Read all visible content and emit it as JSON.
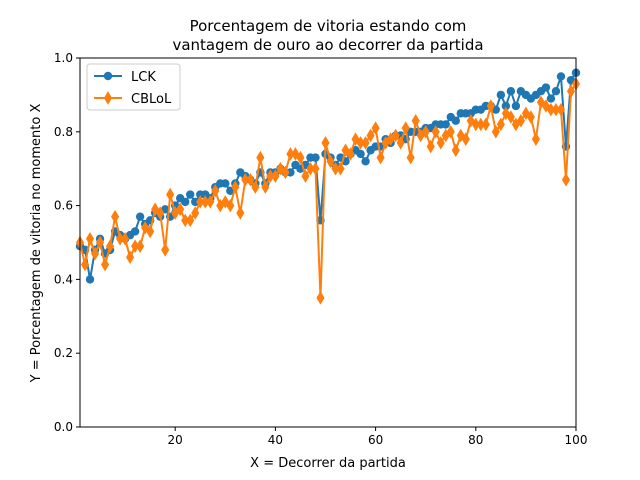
{
  "chart_data": {
    "type": "line",
    "title": "Porcentagem de vitoria estando com\nvantagem de ouro ao decorrer da partida",
    "xlabel": "X = Decorrer da partida",
    "ylabel": "Y = Porcentagem de vitoria no momento X",
    "xlim": [
      1,
      100
    ],
    "ylim": [
      0,
      1.0
    ],
    "xticks": [
      20,
      40,
      60,
      80,
      100
    ],
    "yticks": [
      0.0,
      0.2,
      0.4,
      0.6,
      0.8,
      1.0
    ],
    "ytick_labels": [
      "0.0",
      "0.2",
      "0.4",
      "0.6",
      "0.8",
      "1.0"
    ],
    "grid": false,
    "legend_position": "upper-left",
    "series": [
      {
        "name": "LCK",
        "color": "#1f77b4",
        "marker": "circle",
        "x": [
          1,
          2,
          3,
          4,
          5,
          6,
          7,
          8,
          9,
          10,
          11,
          12,
          13,
          14,
          15,
          16,
          17,
          18,
          19,
          20,
          21,
          22,
          23,
          24,
          25,
          26,
          27,
          28,
          29,
          30,
          31,
          32,
          33,
          34,
          35,
          36,
          37,
          38,
          39,
          40,
          41,
          42,
          43,
          44,
          45,
          46,
          47,
          48,
          49,
          50,
          51,
          52,
          53,
          54,
          55,
          56,
          57,
          58,
          59,
          60,
          61,
          62,
          63,
          64,
          65,
          66,
          67,
          68,
          69,
          70,
          71,
          72,
          73,
          74,
          75,
          76,
          77,
          78,
          79,
          80,
          81,
          82,
          83,
          84,
          85,
          86,
          87,
          88,
          89,
          90,
          91,
          92,
          93,
          94,
          95,
          96,
          97,
          98,
          99,
          100
        ],
        "y": [
          0.49,
          0.48,
          0.4,
          0.48,
          0.51,
          0.47,
          0.48,
          0.53,
          0.52,
          0.51,
          0.52,
          0.53,
          0.57,
          0.55,
          0.56,
          0.58,
          0.57,
          0.59,
          0.57,
          0.6,
          0.62,
          0.61,
          0.63,
          0.61,
          0.63,
          0.63,
          0.62,
          0.65,
          0.66,
          0.66,
          0.64,
          0.66,
          0.69,
          0.68,
          0.67,
          0.66,
          0.69,
          0.66,
          0.69,
          0.69,
          0.7,
          0.69,
          0.69,
          0.71,
          0.7,
          0.71,
          0.73,
          0.73,
          0.56,
          0.74,
          0.73,
          0.71,
          0.73,
          0.72,
          0.74,
          0.75,
          0.74,
          0.72,
          0.75,
          0.76,
          0.76,
          0.78,
          0.77,
          0.79,
          0.79,
          0.78,
          0.8,
          0.8,
          0.8,
          0.81,
          0.81,
          0.82,
          0.82,
          0.82,
          0.84,
          0.83,
          0.85,
          0.85,
          0.85,
          0.86,
          0.86,
          0.87,
          0.87,
          0.86,
          0.9,
          0.87,
          0.91,
          0.87,
          0.91,
          0.9,
          0.89,
          0.9,
          0.91,
          0.92,
          0.89,
          0.91,
          0.95,
          0.76,
          0.94,
          0.96
        ]
      },
      {
        "name": "CBLoL",
        "color": "#ff7f0e",
        "marker": "diamond",
        "x": [
          1,
          2,
          3,
          4,
          5,
          6,
          7,
          8,
          9,
          10,
          11,
          12,
          13,
          14,
          15,
          16,
          17,
          18,
          19,
          20,
          21,
          22,
          23,
          24,
          25,
          26,
          27,
          28,
          29,
          30,
          31,
          32,
          33,
          34,
          35,
          36,
          37,
          38,
          39,
          40,
          41,
          42,
          43,
          44,
          45,
          46,
          47,
          48,
          49,
          50,
          51,
          52,
          53,
          54,
          55,
          56,
          57,
          58,
          59,
          60,
          61,
          62,
          63,
          64,
          65,
          66,
          67,
          68,
          69,
          70,
          71,
          72,
          73,
          74,
          75,
          76,
          77,
          78,
          79,
          80,
          81,
          82,
          83,
          84,
          85,
          86,
          87,
          88,
          89,
          90,
          91,
          92,
          93,
          94,
          95,
          96,
          97,
          98,
          99,
          100
        ],
        "y": [
          0.5,
          0.44,
          0.51,
          0.47,
          0.5,
          0.44,
          0.49,
          0.57,
          0.51,
          0.51,
          0.46,
          0.49,
          0.49,
          0.54,
          0.53,
          0.59,
          0.58,
          0.48,
          0.63,
          0.58,
          0.59,
          0.56,
          0.56,
          0.58,
          0.61,
          0.61,
          0.61,
          0.64,
          0.6,
          0.61,
          0.6,
          0.65,
          0.58,
          0.67,
          0.67,
          0.65,
          0.73,
          0.65,
          0.68,
          0.68,
          0.7,
          0.69,
          0.74,
          0.74,
          0.73,
          0.68,
          0.7,
          0.7,
          0.35,
          0.77,
          0.72,
          0.7,
          0.7,
          0.75,
          0.74,
          0.78,
          0.77,
          0.77,
          0.79,
          0.81,
          0.73,
          0.77,
          0.78,
          0.79,
          0.77,
          0.81,
          0.73,
          0.83,
          0.79,
          0.8,
          0.76,
          0.8,
          0.77,
          0.79,
          0.8,
          0.75,
          0.79,
          0.78,
          0.83,
          0.82,
          0.82,
          0.82,
          0.87,
          0.8,
          0.82,
          0.85,
          0.84,
          0.82,
          0.83,
          0.85,
          0.84,
          0.78,
          0.88,
          0.87,
          0.86,
          0.86,
          0.86,
          0.67,
          0.91,
          0.93
        ]
      }
    ]
  }
}
